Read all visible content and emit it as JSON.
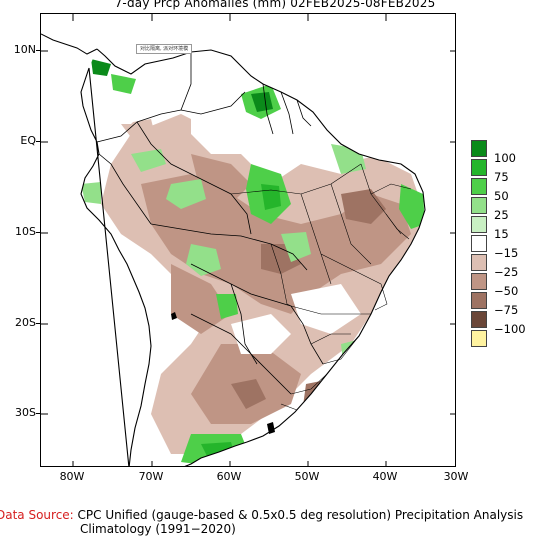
{
  "title": "7-day Prcp Anomalies (mm) 02FEB2025-08FEB2025",
  "lat_labels": [
    "10N",
    "EQ",
    "10S",
    "20S",
    "30S"
  ],
  "lon_labels": [
    "80W",
    "70W",
    "60W",
    "50W",
    "40W",
    "30W"
  ],
  "legend": {
    "labels": [
      "100",
      "75",
      "50",
      "25",
      "15",
      "−15",
      "−25",
      "−50",
      "−75",
      "−100"
    ],
    "colors": [
      "#0b8a1a",
      "#25b52b",
      "#4ecf49",
      "#93e08a",
      "#c9f0c3",
      "#ffffff",
      "#ddbfb3",
      "#bf9585",
      "#9e7363",
      "#6a4638",
      "#fff3a0"
    ]
  },
  "stamp_text": "对比隔离, 派对环境模",
  "source": {
    "lead": "Data Source:",
    "text": " CPC Unified (gauge-based & 0.5x0.5 deg resolution) Precipitation Analysis",
    "climatology": "Climatology (1991−2020)"
  },
  "colors": {
    "ocean": "#ffffff",
    "positive_strong": "#0b8a1a",
    "positive": "#4ecf49",
    "positive_light": "#93e08a",
    "negative_light": "#ddbfb3",
    "negative": "#bf9585",
    "negative_strong": "#9e7363"
  }
}
